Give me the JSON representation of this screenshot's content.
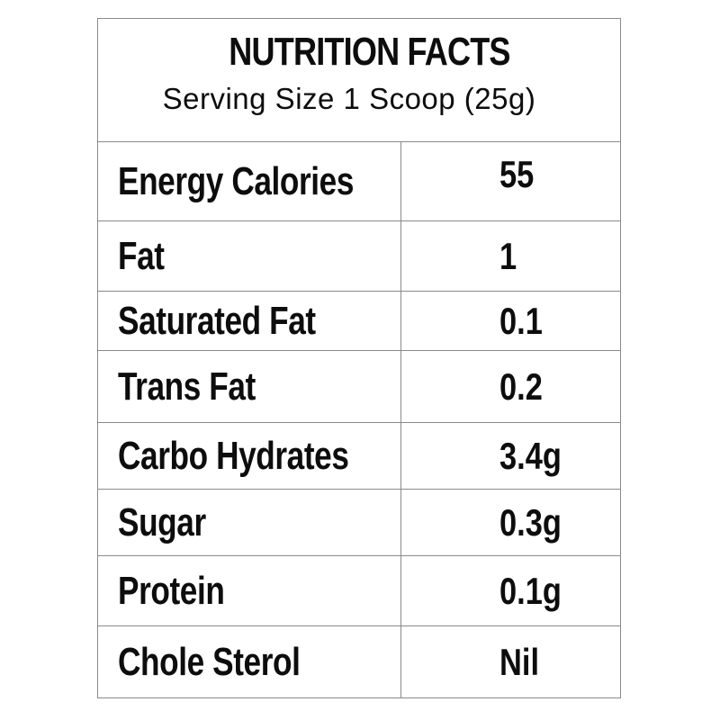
{
  "header": {
    "title": "NUTRITION FACTS",
    "serving_size": "Serving Size 1  Scoop (25g)"
  },
  "rows": [
    {
      "name": "Energy Calories",
      "value": "55"
    },
    {
      "name": "Fat",
      "value": "1"
    },
    {
      "name": "Saturated Fat",
      "value": "0.1"
    },
    {
      "name": "Trans Fat",
      "value": "0.2"
    },
    {
      "name": "Carbo  Hydrates",
      "value": "3.4g"
    },
    {
      "name": "Sugar",
      "value": "0.3g"
    },
    {
      "name": "Protein",
      "value": "0.1g"
    },
    {
      "name": "Chole Sterol",
      "value": "Nil"
    }
  ]
}
